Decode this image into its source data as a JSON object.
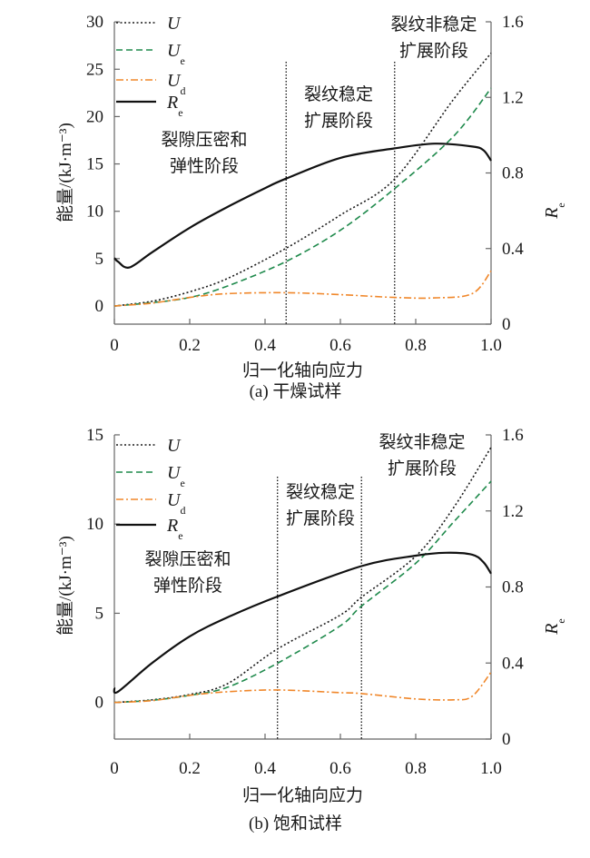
{
  "colors": {
    "U": "#1a1a1a",
    "Ue": "#1f8a4c",
    "Ud": "#f0872a",
    "Re": "#111111",
    "axis": "#666666"
  },
  "chart_data": [
    {
      "type": "line",
      "caption": "(a) 干燥试样",
      "xlabel": "归一化轴向应力",
      "ylabel": "能量/(kJ·m⁻³)",
      "y2label": {
        "symbol": "R",
        "sub": "e"
      },
      "xlim": [
        0,
        1.0
      ],
      "ylim": [
        -2,
        30
      ],
      "y2lim": [
        0,
        1.6
      ],
      "xticks": [
        "0",
        "0.2",
        "0.4",
        "0.6",
        "0.8",
        "1.0"
      ],
      "yticks": [
        "0",
        "5",
        "10",
        "15",
        "20",
        "25",
        "30"
      ],
      "y2ticks": [
        "0",
        "0.4",
        "0.8",
        "1.2",
        "1.6"
      ],
      "stage_boundaries": [
        0.456,
        0.744
      ],
      "annotations": [
        {
          "lines": [
            "裂隙压密和",
            "弹性阶段"
          ]
        },
        {
          "lines": [
            "裂纹稳定",
            "扩展阶段"
          ]
        },
        {
          "lines": [
            "裂纹非稳定",
            "扩展阶段"
          ]
        }
      ],
      "legend": [
        {
          "key": "U",
          "symbol": "U",
          "sub": ""
        },
        {
          "key": "Ue",
          "symbol": "U",
          "sub": "e"
        },
        {
          "key": "Ud",
          "symbol": "U",
          "sub": "d"
        },
        {
          "key": "Re",
          "symbol": "R",
          "sub": "e"
        }
      ],
      "legend_position": "top-left",
      "series": [
        {
          "key": "U",
          "axis": "left",
          "style": "dotted",
          "x": [
            0,
            0.1,
            0.2,
            0.3,
            0.456,
            0.6,
            0.744,
            0.9,
            1.0
          ],
          "y": [
            0,
            0.5,
            1.5,
            2.9,
            6.1,
            9.6,
            13.4,
            21.8,
            26.7
          ]
        },
        {
          "key": "Ue",
          "axis": "left",
          "style": "dashed",
          "x": [
            0,
            0.1,
            0.2,
            0.3,
            0.456,
            0.6,
            0.744,
            0.9,
            1.0
          ],
          "y": [
            0,
            0.35,
            0.9,
            2.1,
            4.7,
            8.0,
            12.4,
            17.9,
            23.0
          ]
        },
        {
          "key": "Ud",
          "axis": "left",
          "style": "dashdot",
          "x": [
            0,
            0.1,
            0.2,
            0.3,
            0.456,
            0.6,
            0.744,
            0.85,
            0.95,
            1.0
          ],
          "y": [
            0,
            0.3,
            0.9,
            1.3,
            1.4,
            1.2,
            0.9,
            0.85,
            1.3,
            3.7
          ]
        },
        {
          "key": "Re",
          "axis": "right",
          "style": "solid",
          "x": [
            0,
            0.01,
            0.04,
            0.1,
            0.2,
            0.3,
            0.4,
            0.456,
            0.6,
            0.744,
            0.85,
            0.95,
            0.98,
            1.0
          ],
          "y": [
            0.35,
            0.33,
            0.3,
            0.38,
            0.51,
            0.62,
            0.72,
            0.77,
            0.88,
            0.93,
            0.955,
            0.94,
            0.92,
            0.865
          ]
        }
      ]
    },
    {
      "type": "line",
      "caption": "(b) 饱和试样",
      "xlabel": "归一化轴向应力",
      "ylabel": "能量/(kJ·m⁻³)",
      "y2label": {
        "symbol": "R",
        "sub": "e"
      },
      "xlim": [
        0,
        1.0
      ],
      "ylim": [
        -2,
        15
      ],
      "y2lim": [
        0,
        1.6
      ],
      "xticks": [
        "0",
        "0.2",
        "0.4",
        "0.6",
        "0.8",
        "1.0"
      ],
      "yticks": [
        "0",
        "5",
        "10",
        "15"
      ],
      "y2ticks": [
        "0",
        "0.4",
        "0.8",
        "1.2",
        "1.6"
      ],
      "stage_boundaries": [
        0.433,
        0.656
      ],
      "annotations": [
        {
          "lines": [
            "裂隙压密和",
            "弹性阶段"
          ]
        },
        {
          "lines": [
            "裂纹稳定",
            "扩展阶段"
          ]
        },
        {
          "lines": [
            "裂纹非稳定",
            "扩展阶段"
          ]
        }
      ],
      "legend": [
        {
          "key": "U",
          "symbol": "U",
          "sub": ""
        },
        {
          "key": "Ue",
          "symbol": "U",
          "sub": "e"
        },
        {
          "key": "Ud",
          "symbol": "U",
          "sub": "d"
        },
        {
          "key": "Re",
          "symbol": "R",
          "sub": "e"
        }
      ],
      "legend_position": "top-left",
      "series": [
        {
          "key": "U",
          "axis": "left",
          "style": "dotted",
          "x": [
            0,
            0.1,
            0.2,
            0.3,
            0.433,
            0.6,
            0.656,
            0.8,
            0.9,
            1.0
          ],
          "y": [
            0,
            0.15,
            0.45,
            1.05,
            3.0,
            4.9,
            5.9,
            8.2,
            10.9,
            14.3
          ]
        },
        {
          "key": "Ue",
          "axis": "left",
          "style": "dashed",
          "x": [
            0,
            0.1,
            0.2,
            0.3,
            0.433,
            0.6,
            0.656,
            0.8,
            0.9,
            1.0
          ],
          "y": [
            0,
            0.12,
            0.4,
            0.85,
            2.2,
            4.3,
            5.4,
            7.8,
            10.1,
            12.4
          ]
        },
        {
          "key": "Ud",
          "axis": "left",
          "style": "dashdot",
          "x": [
            0,
            0.1,
            0.2,
            0.3,
            0.433,
            0.6,
            0.656,
            0.8,
            0.9,
            0.95,
            1.0
          ],
          "y": [
            0,
            0.1,
            0.4,
            0.6,
            0.7,
            0.55,
            0.5,
            0.2,
            0.15,
            0.35,
            1.7
          ]
        },
        {
          "key": "Re",
          "axis": "right",
          "style": "solid",
          "x": [
            0,
            0.01,
            0.1,
            0.2,
            0.3,
            0.433,
            0.656,
            0.8,
            0.88,
            0.95,
            0.98,
            1.0
          ],
          "y": [
            0.27,
            0.25,
            0.4,
            0.54,
            0.64,
            0.75,
            0.91,
            0.965,
            0.98,
            0.97,
            0.93,
            0.87
          ]
        }
      ]
    }
  ]
}
